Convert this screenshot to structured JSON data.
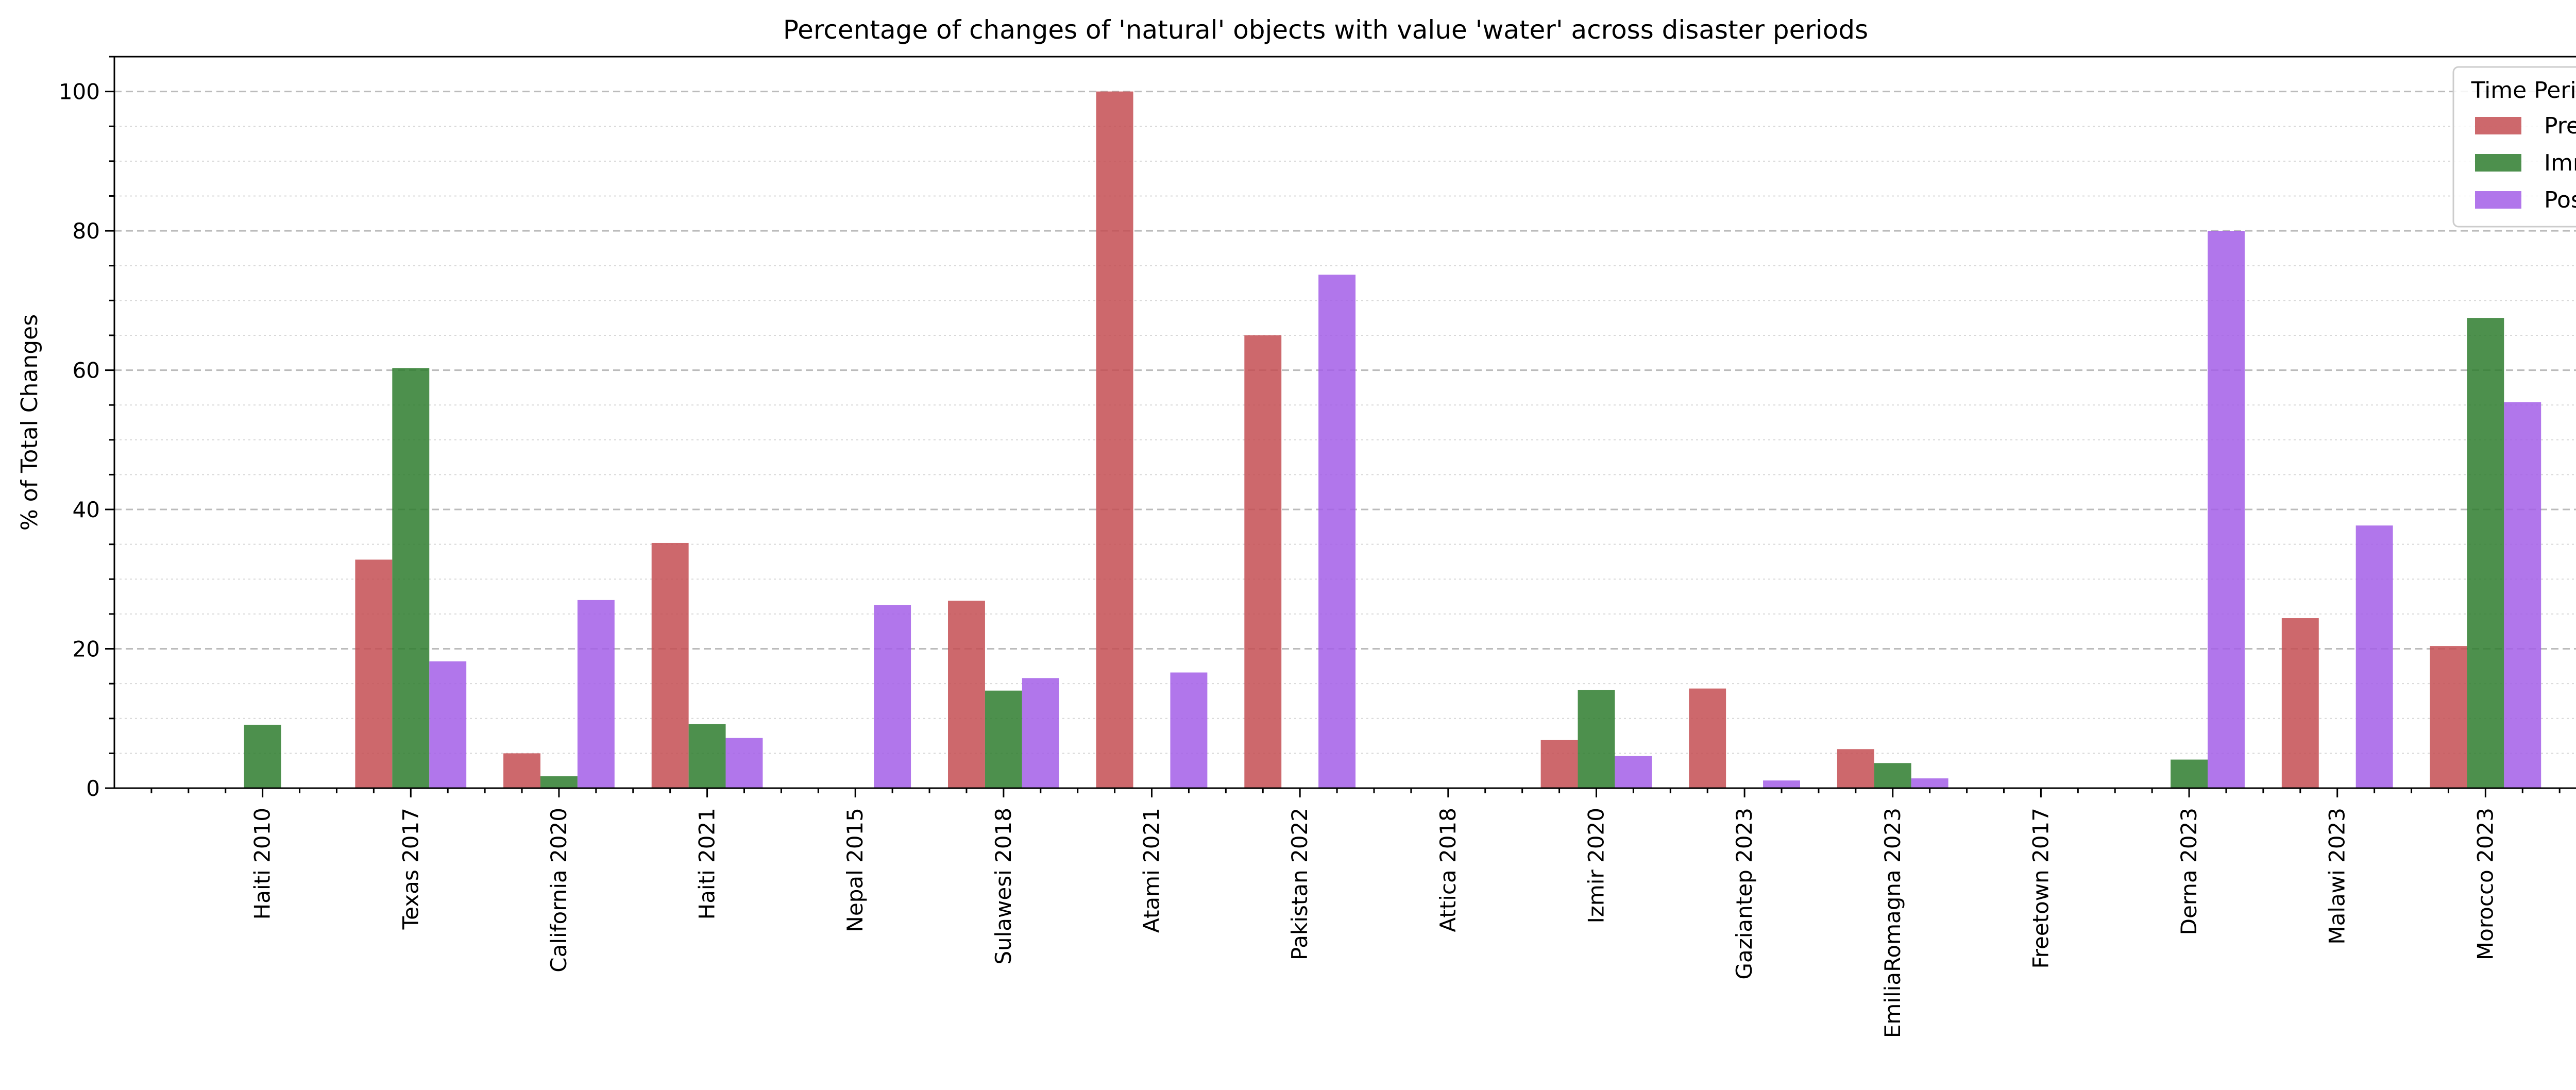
{
  "chart_data": {
    "type": "bar",
    "title": "Percentage of changes of 'natural' objects with value 'water' across disaster periods",
    "xlabel": "",
    "ylabel": "% of Total Changes",
    "ylim": [
      0,
      105
    ],
    "yticks": [
      "0",
      "20",
      "40",
      "60",
      "80",
      "100"
    ],
    "grid": true,
    "legend": {
      "title": "Time Period",
      "position": "top-right"
    },
    "categories": [
      "Haiti 2010",
      "Texas 2017",
      "California 2020",
      "Haiti 2021",
      "Nepal 2015",
      "Sulawesi 2018",
      "Atami 2021",
      "Pakistan 2022",
      "Attica 2018",
      "Izmir 2020",
      "Gaziantep 2023",
      "EmiliaRomagna 2023",
      "Freetown 2017",
      "Derna 2023",
      "Malawi 2023",
      "Morocco 2023"
    ],
    "series": [
      {
        "name": "Pre",
        "color": "#c44e52",
        "values": [
          0,
          32.8,
          5.0,
          35.2,
          0,
          26.9,
          100,
          65.0,
          0,
          6.9,
          14.3,
          5.6,
          0,
          0,
          24.4,
          20.4
        ]
      },
      {
        "name": "Imm",
        "color": "#2e7d2e",
        "values": [
          9.1,
          60.3,
          1.7,
          9.2,
          0,
          14.0,
          0,
          0,
          0,
          14.1,
          0,
          3.6,
          0,
          4.1,
          0,
          67.5
        ]
      },
      {
        "name": "Post",
        "color": "#a35ee8",
        "values": [
          0,
          18.2,
          27.0,
          7.2,
          26.3,
          15.8,
          16.6,
          73.7,
          0,
          4.6,
          1.1,
          1.4,
          0,
          80.0,
          37.7,
          55.4
        ]
      }
    ]
  }
}
